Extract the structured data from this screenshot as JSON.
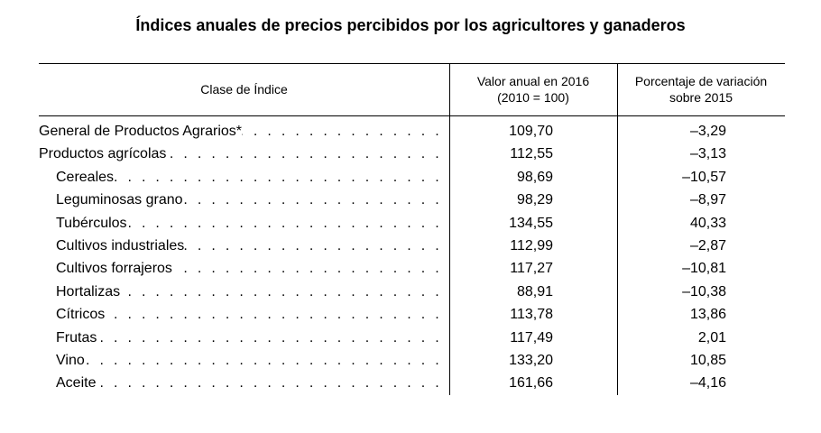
{
  "title": "Índices anuales de precios percibidos por los agricultores y ganaderos",
  "headers": {
    "col1": "Clase de Índice",
    "col2_line1": "Valor anual en 2016",
    "col2_line2": "(2010 = 100)",
    "col3_line1": "Porcentaje de variación",
    "col3_line2": "sobre 2015"
  },
  "rows": [
    {
      "label": "General de Productos Agrarios*",
      "value": "109,70",
      "change": "–3,29",
      "indent": 0
    },
    {
      "label": "Productos agrícolas",
      "value": "112,55",
      "change": "–3,13",
      "indent": 0
    },
    {
      "label": "Cereales",
      "value": "98,69",
      "change": "–10,57",
      "indent": 1
    },
    {
      "label": "Leguminosas grano",
      "value": "98,29",
      "change": "–8,97",
      "indent": 1
    },
    {
      "label": "Tubérculos",
      "value": "134,55",
      "change": "40,33",
      "indent": 1
    },
    {
      "label": "Cultivos industriales",
      "value": "112,99",
      "change": "–2,87",
      "indent": 1
    },
    {
      "label": "Cultivos forrajeros",
      "value": "117,27",
      "change": "–10,81",
      "indent": 1
    },
    {
      "label": "Hortalizas",
      "value": "88,91",
      "change": "–10,38",
      "indent": 1
    },
    {
      "label": "Cítricos",
      "value": "113,78",
      "change": "13,86",
      "indent": 1
    },
    {
      "label": "Frutas",
      "value": "117,49",
      "change": "2,01",
      "indent": 1
    },
    {
      "label": "Vino",
      "value": "133,20",
      "change": "10,85",
      "indent": 1
    },
    {
      "label": "Aceite",
      "value": "161,66",
      "change": "–4,16",
      "indent": 1
    }
  ]
}
